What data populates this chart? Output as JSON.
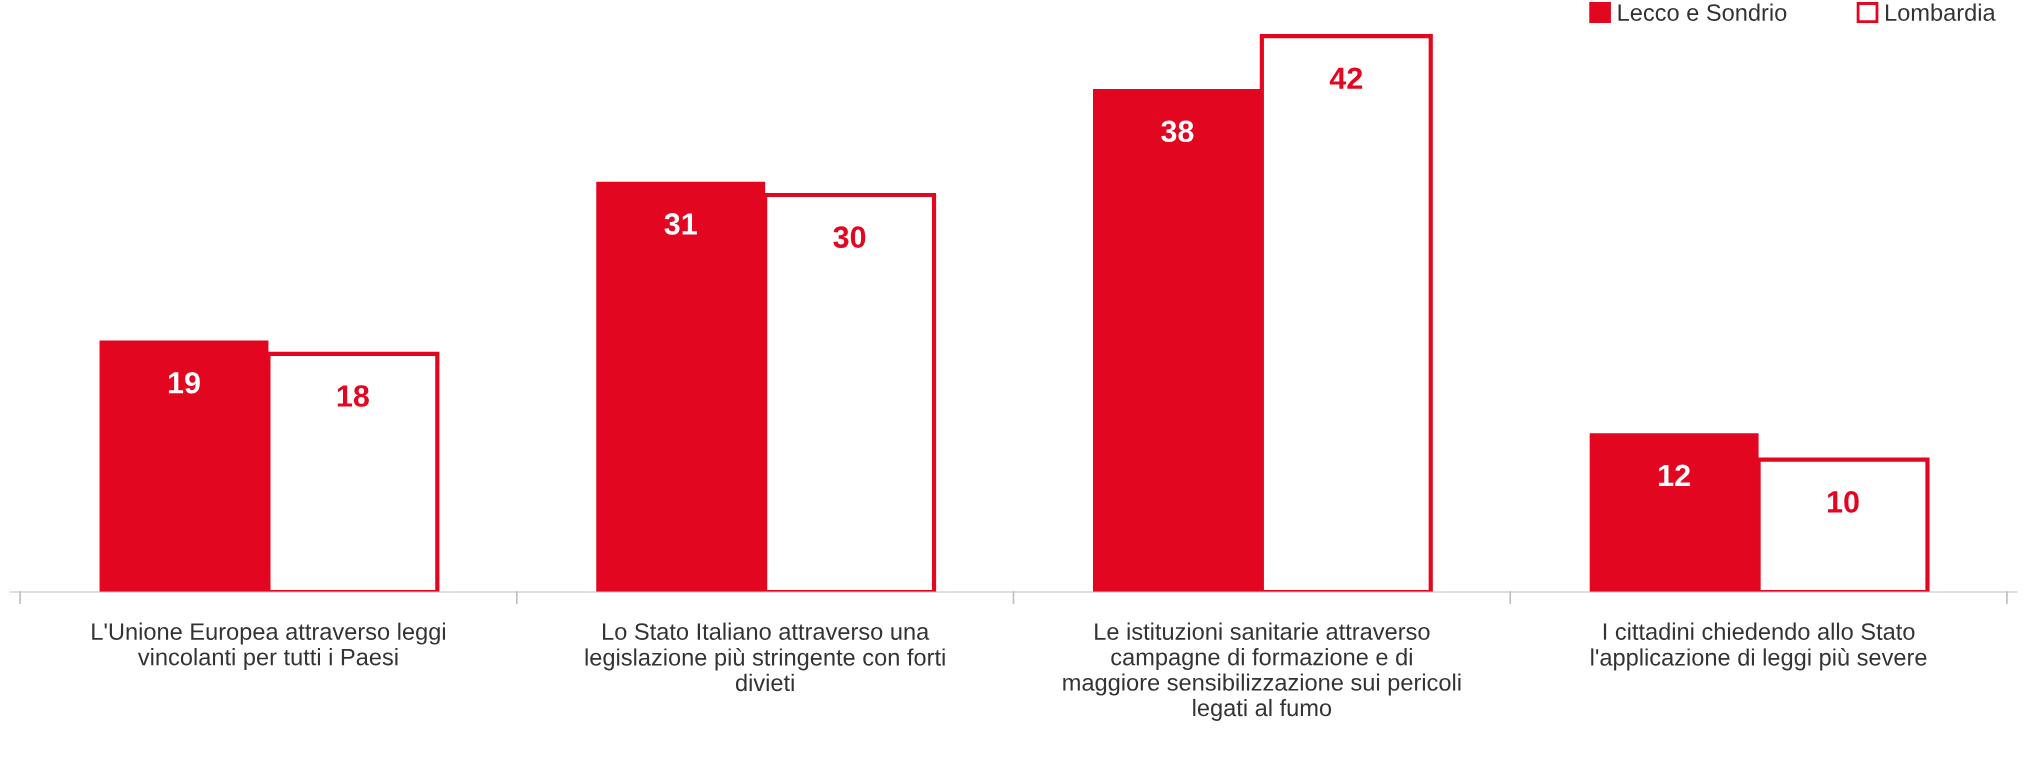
{
  "chart_data": {
    "type": "bar",
    "categories": [
      "L'Unione Europea attraverso leggi\nvincolanti per tutti i Paesi",
      "Lo Stato Italiano attraverso una\nlegislazione più stringente con forti\ndivieti",
      "Le istituzioni sanitarie attraverso\ncampagne di formazione e di\nmaggiore sensibilizzazione sui pericoli\nlegati al fumo",
      "I cittadini chiedendo allo Stato\nl'applicazione di leggi più severe"
    ],
    "series": [
      {
        "name": "Lecco e Sondrio",
        "color": "#e30620",
        "values": [
          19,
          31,
          38,
          12
        ]
      },
      {
        "name": "Lombardia",
        "color": "#ffffff",
        "values": [
          18,
          30,
          42,
          10
        ]
      }
    ],
    "data_labels": true,
    "legend": "top right",
    "tick_labels": "x",
    "grid": false
  }
}
